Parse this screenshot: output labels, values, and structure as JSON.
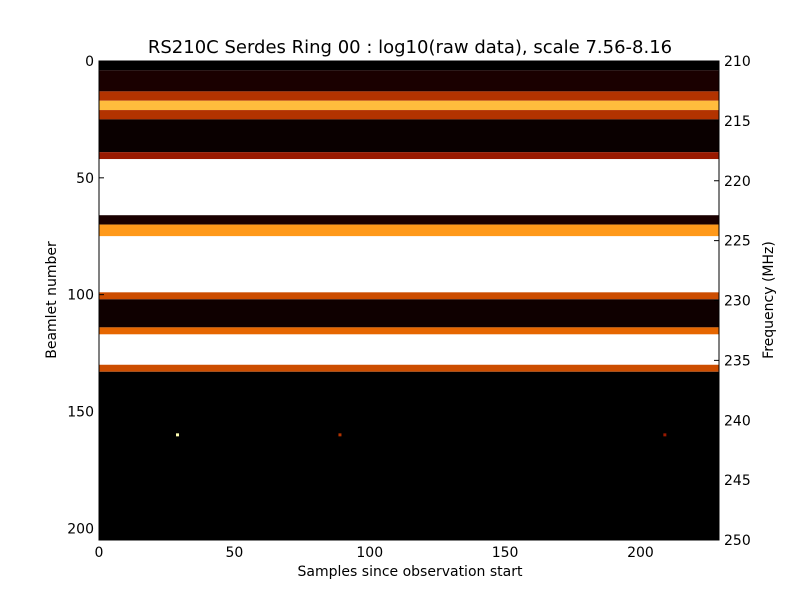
{
  "chart_data": {
    "type": "heatmap",
    "title": "RS210C Serdes Ring 00 : log10(raw data), scale 7.56-8.16",
    "xlabel": "Samples since observation start",
    "ylabel": "Beamlet number",
    "y2label": "Frequency (MHz)",
    "xlim": [
      0,
      229
    ],
    "ylim": [
      205,
      0
    ],
    "y2lim": [
      250,
      210
    ],
    "colormap": "afmhot",
    "scale": [
      7.56,
      8.16
    ],
    "x_ticks": [
      "0",
      "50",
      "100",
      "150",
      "200"
    ],
    "y_ticks": [
      "0",
      "50",
      "100",
      "150",
      "200"
    ],
    "y2_ticks": [
      "210",
      "215",
      "220",
      "225",
      "230",
      "235",
      "240",
      "245",
      "250"
    ],
    "bands": [
      {
        "beamlet_start": 0,
        "beamlet_end": 4,
        "level": 0.0
      },
      {
        "beamlet_start": 4,
        "beamlet_end": 13,
        "level": 0.05
      },
      {
        "beamlet_start": 13,
        "beamlet_end": 17,
        "level": 0.35
      },
      {
        "beamlet_start": 17,
        "beamlet_end": 21,
        "level": 0.62
      },
      {
        "beamlet_start": 21,
        "beamlet_end": 25,
        "level": 0.35
      },
      {
        "beamlet_start": 25,
        "beamlet_end": 39,
        "level": 0.02
      },
      {
        "beamlet_start": 39,
        "beamlet_end": 42,
        "level": 0.3
      },
      {
        "beamlet_start": 42,
        "beamlet_end": 66,
        "level": 1.0
      },
      {
        "beamlet_start": 66,
        "beamlet_end": 70,
        "level": 0.05
      },
      {
        "beamlet_start": 70,
        "beamlet_end": 75,
        "level": 0.55
      },
      {
        "beamlet_start": 75,
        "beamlet_end": 99,
        "level": 1.0
      },
      {
        "beamlet_start": 99,
        "beamlet_end": 102,
        "level": 0.4
      },
      {
        "beamlet_start": 102,
        "beamlet_end": 114,
        "level": 0.03
      },
      {
        "beamlet_start": 114,
        "beamlet_end": 117,
        "level": 0.45
      },
      {
        "beamlet_start": 117,
        "beamlet_end": 130,
        "level": 1.0
      },
      {
        "beamlet_start": 130,
        "beamlet_end": 133,
        "level": 0.4
      },
      {
        "beamlet_start": 133,
        "beamlet_end": 205,
        "level": 0.0
      }
    ],
    "spots": [
      {
        "x": 29,
        "y": 160,
        "level": 0.85
      },
      {
        "x": 89,
        "y": 160,
        "level": 0.35
      },
      {
        "x": 209,
        "y": 160,
        "level": 0.3
      }
    ]
  }
}
